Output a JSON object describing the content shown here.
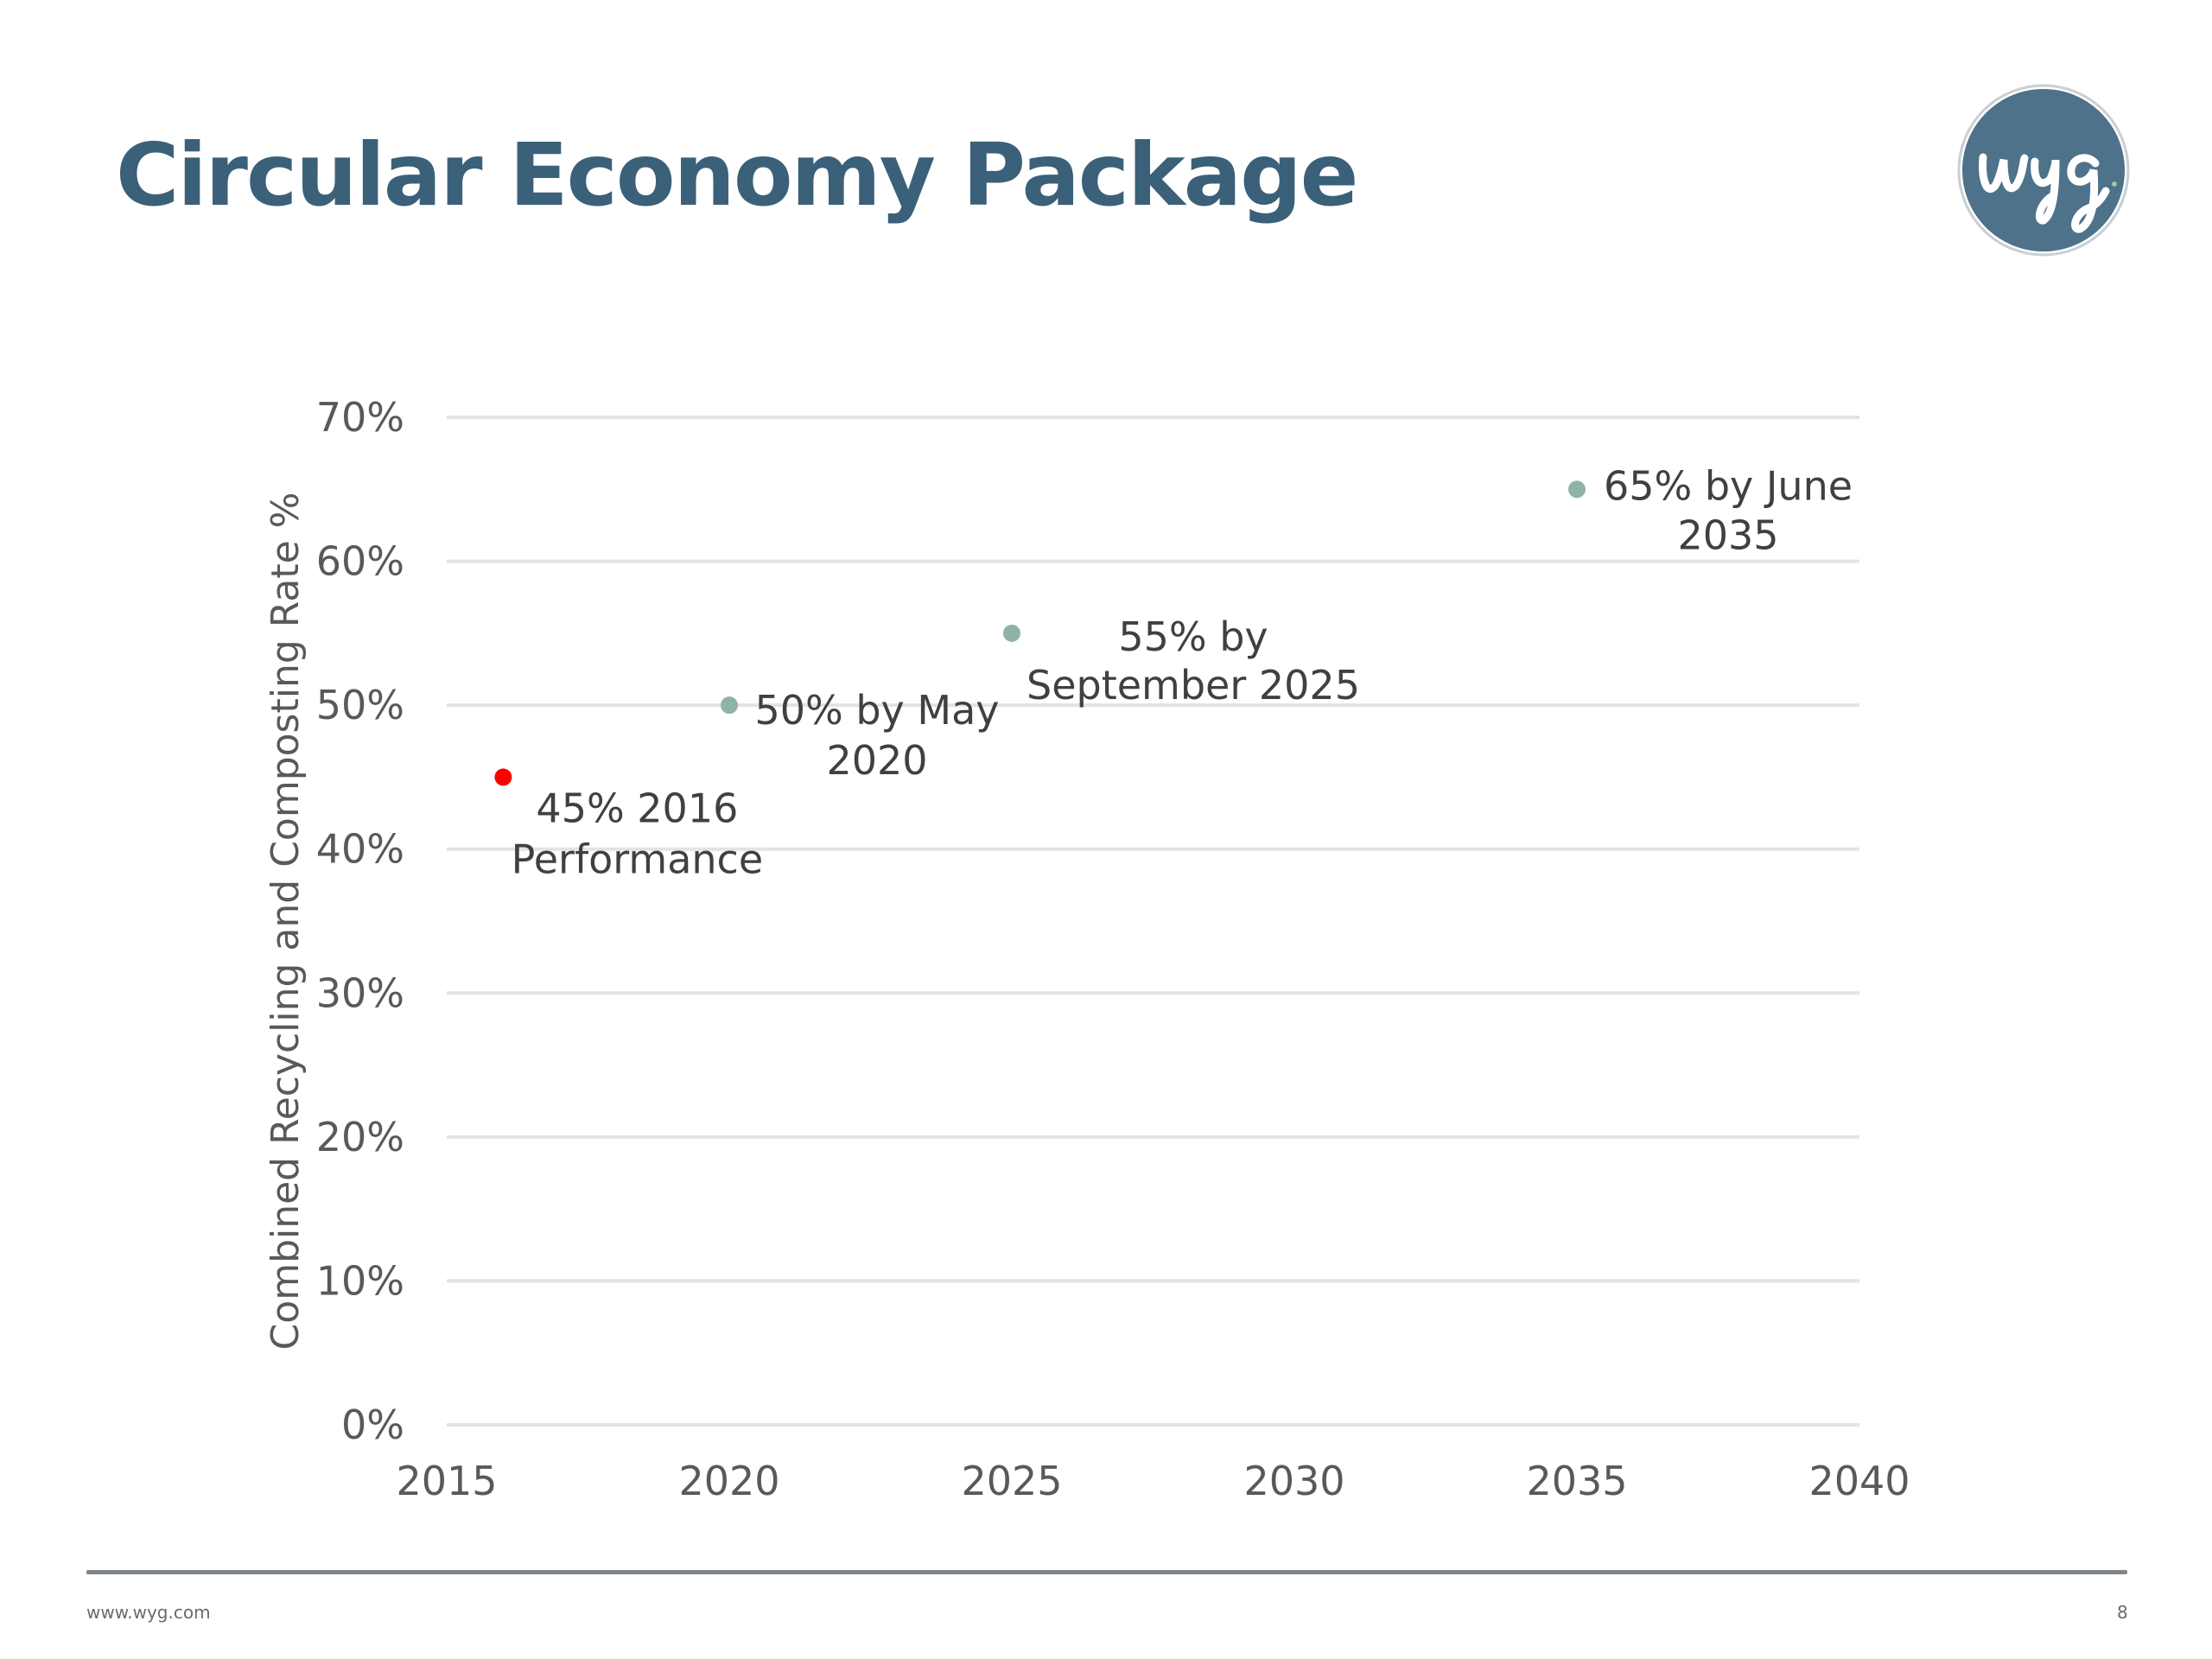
{
  "slide": {
    "title": "Circular Economy Package",
    "logo_text": "wyg",
    "brand_color": "#3b6079",
    "footer_url": "www.wyg.com",
    "page_number": "8"
  },
  "chart_data": {
    "type": "scatter",
    "title": "",
    "xlabel": "",
    "ylabel": "Combined Recycling and Composting Rate %",
    "xlim": [
      2015,
      2040
    ],
    "ylim": [
      0,
      70
    ],
    "x_ticks": [
      2015,
      2020,
      2025,
      2030,
      2035,
      2040
    ],
    "x_tick_labels": [
      "2015",
      "2020",
      "2025",
      "2030",
      "2035",
      "2040"
    ],
    "y_ticks": [
      0,
      10,
      20,
      30,
      40,
      50,
      60,
      70
    ],
    "y_tick_labels": [
      "0%",
      "10%",
      "20%",
      "30%",
      "40%",
      "50%",
      "60%",
      "70%"
    ],
    "grid": "horizontal",
    "legend": "none",
    "points": [
      {
        "x": 2016,
        "y": 45,
        "color": "#ff0000",
        "label": [
          "45% 2016",
          "Performance"
        ],
        "label_position": "below-right"
      },
      {
        "x": 2020,
        "y": 50,
        "color": "#8fb3a6",
        "label": [
          "50% by May",
          "2020"
        ],
        "label_position": "right"
      },
      {
        "x": 2025,
        "y": 55,
        "color": "#8fb3a6",
        "label": [
          "55% by",
          "September 2025"
        ],
        "label_position": "right"
      },
      {
        "x": 2035,
        "y": 65,
        "color": "#8fb3a6",
        "label": [
          "65% by June",
          "2035"
        ],
        "label_position": "right"
      }
    ]
  }
}
